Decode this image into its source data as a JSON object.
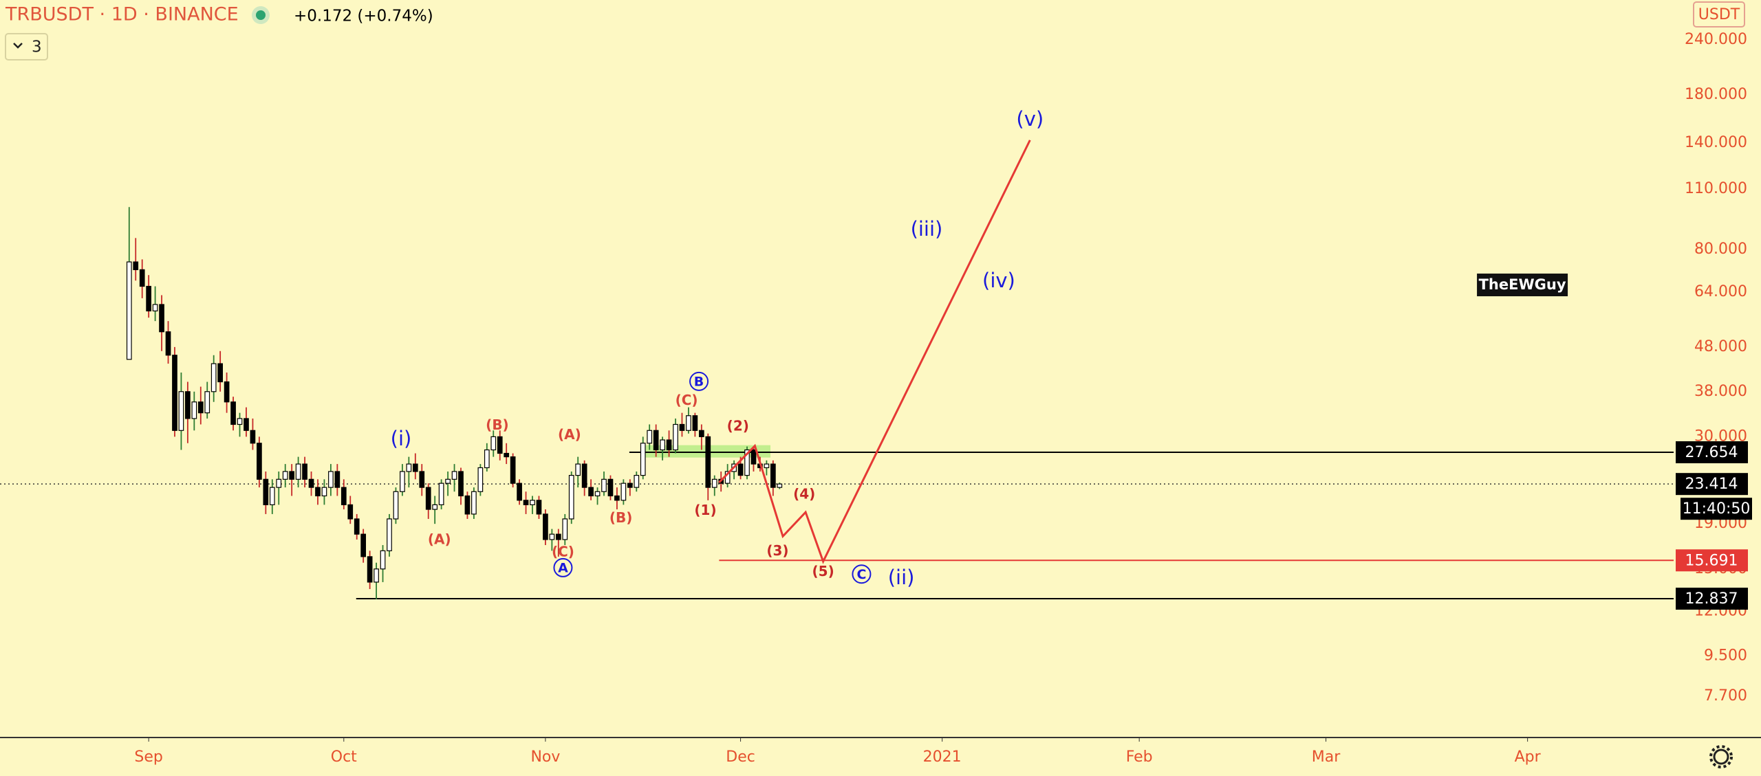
{
  "header": {
    "symbol": "TRBUSDT · 1D · BINANCE",
    "change": "+0.172 (+0.74%)",
    "indicator_count": "3",
    "currency": "USDT"
  },
  "chart_data": {
    "type": "candlestick",
    "log_scale": true,
    "up_color": "#ffffff",
    "down_color": "#000000",
    "border_color": "#000000",
    "up_wick_color": "#2e7d32",
    "down_wick_color": "#c62828",
    "candles": [
      [
        45,
        100,
        45,
        75
      ],
      [
        75,
        85,
        68,
        72
      ],
      [
        72,
        76,
        62,
        66
      ],
      [
        66,
        70,
        56,
        58
      ],
      [
        58,
        66,
        55,
        60
      ],
      [
        60,
        63,
        47,
        52
      ],
      [
        52,
        55,
        44,
        46
      ],
      [
        46,
        48,
        30,
        31
      ],
      [
        31,
        42,
        28,
        38
      ],
      [
        38,
        40,
        29,
        33
      ],
      [
        33,
        38,
        31,
        36
      ],
      [
        36,
        39,
        32,
        34
      ],
      [
        34,
        40,
        33,
        38
      ],
      [
        38,
        46,
        36,
        44
      ],
      [
        44,
        47,
        38,
        40
      ],
      [
        40,
        42,
        34,
        36
      ],
      [
        36,
        37,
        31,
        32
      ],
      [
        32,
        34,
        30,
        33
      ],
      [
        33,
        35,
        30,
        31
      ],
      [
        31,
        33,
        28,
        29
      ],
      [
        29,
        30,
        23,
        24
      ],
      [
        24,
        25,
        20,
        21
      ],
      [
        21,
        24,
        20,
        23
      ],
      [
        23,
        25,
        21,
        24
      ],
      [
        24,
        26,
        23,
        25
      ],
      [
        25,
        26,
        22,
        24
      ],
      [
        24,
        27,
        23,
        26
      ],
      [
        26,
        27,
        23,
        24
      ],
      [
        24,
        25,
        22,
        23
      ],
      [
        23,
        24,
        21,
        22
      ],
      [
        22,
        24,
        21,
        23
      ],
      [
        23,
        26,
        22,
        25
      ],
      [
        25,
        26,
        22,
        23
      ],
      [
        23,
        24,
        20.5,
        21
      ],
      [
        21,
        22,
        19,
        19.5
      ],
      [
        19.5,
        20,
        17.5,
        18
      ],
      [
        18,
        18.5,
        15.5,
        16
      ],
      [
        16,
        16.5,
        13.5,
        14
      ],
      [
        14,
        15.5,
        12.8,
        15
      ],
      [
        15,
        17,
        14,
        16.5
      ],
      [
        16.5,
        20,
        16,
        19.5
      ],
      [
        19.5,
        23,
        19,
        22.5
      ],
      [
        22.5,
        26,
        22,
        25
      ],
      [
        25,
        27,
        23,
        26
      ],
      [
        26,
        27.5,
        24,
        25
      ],
      [
        25,
        26,
        22,
        23
      ],
      [
        23,
        23.5,
        19.5,
        20.5
      ],
      [
        20.5,
        22,
        19,
        21
      ],
      [
        21,
        24,
        20.5,
        23.5
      ],
      [
        23.5,
        25,
        22,
        24
      ],
      [
        24,
        26,
        22.5,
        25
      ],
      [
        25,
        25.5,
        21,
        22
      ],
      [
        22,
        22.5,
        19.5,
        20
      ],
      [
        20,
        23,
        19.5,
        22.5
      ],
      [
        22.5,
        26,
        22,
        25.5
      ],
      [
        25.5,
        29,
        25,
        28
      ],
      [
        28,
        31,
        27,
        30
      ],
      [
        30,
        31,
        26.5,
        27.5
      ],
      [
        27.5,
        29,
        26,
        27
      ],
      [
        27,
        27.5,
        23,
        23.5
      ],
      [
        23.5,
        24,
        21,
        21.5
      ],
      [
        21.5,
        22.5,
        20,
        21
      ],
      [
        21,
        22,
        20,
        21.5
      ],
      [
        21.5,
        22,
        19.5,
        20
      ],
      [
        20,
        20.5,
        17,
        17.5
      ],
      [
        17.5,
        18.5,
        16.5,
        18
      ],
      [
        18,
        18.5,
        16,
        17.5
      ],
      [
        17.5,
        20,
        17,
        19.5
      ],
      [
        19.5,
        25,
        19,
        24.5
      ],
      [
        24.5,
        27,
        23,
        26
      ],
      [
        26,
        26.5,
        22,
        23
      ],
      [
        23,
        24,
        21.5,
        22
      ],
      [
        22,
        23,
        21,
        22.5
      ],
      [
        22.5,
        25,
        22,
        24
      ],
      [
        24,
        24.5,
        21.5,
        22
      ],
      [
        22,
        23,
        20.5,
        21.5
      ],
      [
        21.5,
        24,
        21,
        23.5
      ],
      [
        23.5,
        24,
        22,
        23
      ],
      [
        23,
        25,
        22.5,
        24.5
      ],
      [
        24.5,
        30,
        24,
        29
      ],
      [
        29,
        32,
        28,
        31
      ],
      [
        31,
        32,
        27,
        28
      ],
      [
        28,
        30,
        26.5,
        29.5
      ],
      [
        29.5,
        31,
        27,
        28
      ],
      [
        28,
        33,
        27.5,
        32
      ],
      [
        32,
        34,
        30,
        31
      ],
      [
        31,
        35,
        30.5,
        33.5
      ],
      [
        33.5,
        34,
        30,
        31
      ],
      [
        31,
        32,
        28,
        30
      ],
      [
        30,
        30.5,
        21.5,
        23
      ],
      [
        23,
        24.5,
        22,
        24
      ],
      [
        24,
        25,
        22.5,
        23.5
      ],
      [
        23.5,
        26,
        23,
        25
      ],
      [
        25,
        26.5,
        24,
        26
      ],
      [
        26,
        27,
        24,
        24.5
      ],
      [
        24.5,
        28.5,
        24,
        28
      ],
      [
        28,
        28.5,
        25,
        26
      ],
      [
        26,
        27,
        25,
        25.5
      ],
      [
        25.5,
        26.5,
        24.5,
        26
      ],
      [
        26,
        26.5,
        22,
        23
      ],
      [
        23,
        23.6,
        22.8,
        23.414
      ]
    ],
    "xlim": [
      -19.86,
      237.46
    ],
    "xticks": [
      {
        "value": 3,
        "label": "Sep"
      },
      {
        "value": 33,
        "label": "Oct"
      },
      {
        "value": 64,
        "label": "Nov"
      },
      {
        "value": 94,
        "label": "Dec"
      },
      {
        "value": 125,
        "label": "2021"
      },
      {
        "value": 155.3,
        "label": "Feb"
      },
      {
        "value": 184,
        "label": "Mar"
      },
      {
        "value": 215,
        "label": "Apr"
      }
    ],
    "ylim": [
      6.2,
      296
    ],
    "yticks": [
      {
        "value": 240,
        "label": "240.000"
      },
      {
        "value": 180,
        "label": "180.000"
      },
      {
        "value": 140,
        "label": "140.000"
      },
      {
        "value": 110,
        "label": "110.000"
      },
      {
        "value": 80,
        "label": "80.000"
      },
      {
        "value": 64,
        "label": "64.000"
      },
      {
        "value": 48,
        "label": "48.000"
      },
      {
        "value": 38,
        "label": "38.000"
      },
      {
        "value": 30,
        "label": "30.000"
      },
      {
        "value": 19,
        "label": "19.000"
      },
      {
        "value": 15,
        "label": "15.000"
      },
      {
        "value": 12,
        "label": "12.000"
      },
      {
        "value": 9.5,
        "label": "9.500"
      },
      {
        "value": 7.7,
        "label": "7.700"
      }
    ],
    "last_price": 23.414,
    "countdown": "11:40:50",
    "price_lines": [
      {
        "price": 27.654,
        "from": 76.9,
        "color": "#000000"
      },
      {
        "price": 15.691,
        "from": 90.7,
        "color": "#e53935"
      },
      {
        "price": 12.837,
        "from": 34.9,
        "color": "#000000"
      }
    ],
    "zone": {
      "x": [
        79.4,
        98.6
      ],
      "y": [
        26.9,
        28.7
      ],
      "color": "#9be86b"
    },
    "projection": {
      "color": "#e53935",
      "x": [
        90.7,
        96.2,
        100.5,
        104,
        106.7,
        138.5
      ],
      "y": [
        23.6,
        28.6,
        17.8,
        20.2,
        15.6,
        142
      ]
    },
    "annotations": [
      {
        "text": "(i)",
        "x": 41.8,
        "y": 29.6,
        "color": "#1a1adb",
        "size": "big"
      },
      {
        "text": "(A)",
        "x": 47.7,
        "y": 17.5,
        "color": "#d9473a",
        "size": "small"
      },
      {
        "text": "(B)",
        "x": 56.6,
        "y": 31.9,
        "color": "#d9473a",
        "size": "small"
      },
      {
        "text": "(C)",
        "x": 66.7,
        "y": 16.4,
        "color": "#d9473a",
        "size": "small"
      },
      {
        "text": "A",
        "x": 66.7,
        "y": 15.1,
        "color": "#1a1adb",
        "size": "circled"
      },
      {
        "text": "(A)",
        "x": 67.7,
        "y": 30.3,
        "color": "#d9473a",
        "size": "small"
      },
      {
        "text": "(B)",
        "x": 75.6,
        "y": 19.6,
        "color": "#d9473a",
        "size": "small"
      },
      {
        "text": "(C)",
        "x": 85.7,
        "y": 36.3,
        "color": "#d9473a",
        "size": "small"
      },
      {
        "text": "B",
        "x": 87.6,
        "y": 40.1,
        "color": "#1a1adb",
        "size": "circled"
      },
      {
        "text": "(2)",
        "x": 93.6,
        "y": 31.7,
        "color": "#c62828",
        "size": "small"
      },
      {
        "text": "(1)",
        "x": 88.6,
        "y": 20.4,
        "color": "#c62828",
        "size": "small"
      },
      {
        "text": "(4)",
        "x": 103.8,
        "y": 22.2,
        "color": "#c62828",
        "size": "small"
      },
      {
        "text": "(3)",
        "x": 99.7,
        "y": 16.5,
        "color": "#c62828",
        "size": "small"
      },
      {
        "text": "(5)",
        "x": 106.7,
        "y": 14.8,
        "color": "#c62828",
        "size": "small"
      },
      {
        "text": "C",
        "x": 112.6,
        "y": 14.6,
        "color": "#1a1adb",
        "size": "circled"
      },
      {
        "text": "(ii)",
        "x": 118.7,
        "y": 14.3,
        "color": "#1a1adb",
        "size": "big"
      },
      {
        "text": "(iii)",
        "x": 122.6,
        "y": 88.8,
        "color": "#1a1adb",
        "size": "big"
      },
      {
        "text": "(iv)",
        "x": 133.7,
        "y": 67.8,
        "color": "#1a1adb",
        "size": "big"
      },
      {
        "text": "(v)",
        "x": 138.5,
        "y": 158,
        "color": "#1a1adb",
        "size": "big"
      }
    ],
    "watermark": {
      "text": "TheEWGuy",
      "x": 214.2,
      "y": 66.6
    }
  }
}
